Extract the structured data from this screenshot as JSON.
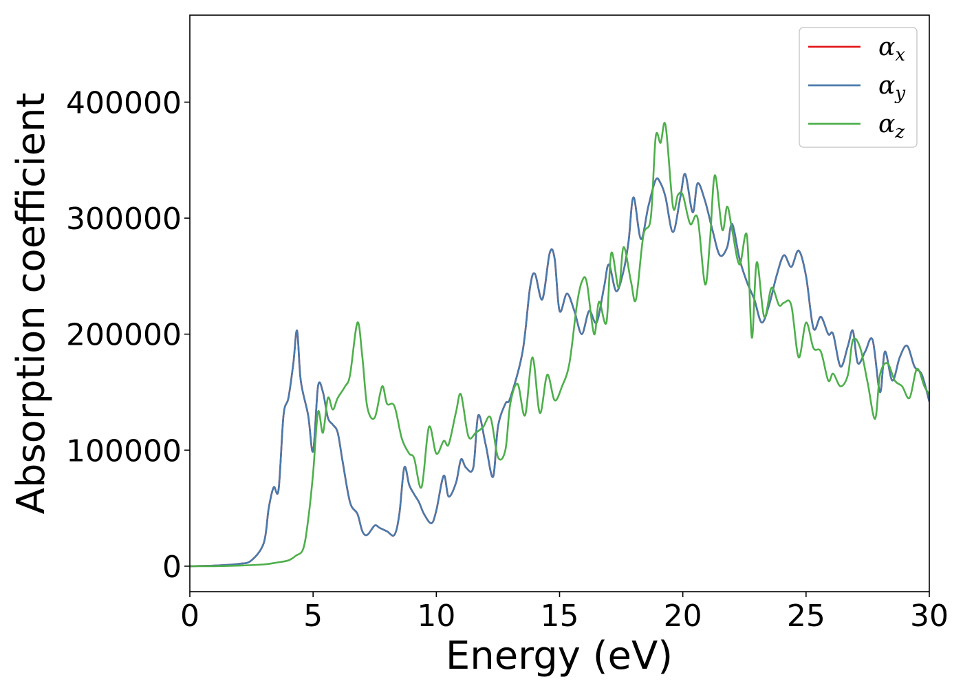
{
  "chart_data": {
    "type": "line",
    "title": "",
    "xlabel": "Energy (eV)",
    "ylabel": "Absorption coefficient",
    "xlim": [
      0,
      30
    ],
    "ylim": [
      -22000,
      475000
    ],
    "xticks": [
      0,
      5,
      10,
      15,
      20,
      25,
      30
    ],
    "yticks": [
      0,
      100000,
      200000,
      300000,
      400000
    ],
    "grid": false,
    "legend_position": "top-right",
    "series": [
      {
        "name": "α_x",
        "symbol": "α",
        "sub": "x",
        "color": "#e41a1c",
        "x": [
          0,
          1,
          2,
          2.5,
          3,
          3.2,
          3.4,
          3.6,
          3.8,
          4.0,
          4.2,
          4.35,
          4.5,
          4.8,
          5.0,
          5.2,
          5.4,
          5.6,
          5.8,
          6.0,
          6.2,
          6.5,
          6.8,
          7.0,
          7.2,
          7.5,
          7.7,
          8.0,
          8.3,
          8.5,
          8.7,
          8.9,
          9.1,
          9.3,
          9.5,
          9.8,
          10.0,
          10.3,
          10.5,
          10.8,
          11.0,
          11.2,
          11.5,
          11.7,
          12.0,
          12.3,
          12.5,
          12.8,
          13.0,
          13.5,
          13.8,
          14.0,
          14.3,
          14.6,
          14.8,
          15.0,
          15.3,
          15.6,
          15.9,
          16.2,
          16.5,
          16.8,
          17.0,
          17.3,
          17.6,
          17.8,
          18.0,
          18.3,
          18.6,
          18.9,
          19.1,
          19.3,
          19.6,
          19.9,
          20.1,
          20.4,
          20.6,
          20.9,
          21.2,
          21.5,
          21.8,
          22.0,
          22.3,
          22.6,
          22.9,
          23.2,
          23.5,
          23.8,
          24.1,
          24.4,
          24.7,
          25.0,
          25.3,
          25.6,
          25.9,
          26.1,
          26.4,
          26.7,
          26.9,
          27.1,
          27.4,
          27.7,
          28.0,
          28.2,
          28.5,
          28.8,
          29.1,
          29.4,
          29.7,
          30.0
        ],
        "values": [
          0,
          500,
          2000,
          5000,
          20000,
          50000,
          68000,
          66000,
          130000,
          145000,
          175000,
          203000,
          160000,
          130000,
          99000,
          155000,
          150000,
          128000,
          122000,
          115000,
          90000,
          55000,
          45000,
          30000,
          27000,
          35000,
          33000,
          30000,
          27000,
          45000,
          85000,
          70000,
          62000,
          55000,
          45000,
          37000,
          48000,
          78000,
          60000,
          72000,
          92000,
          85000,
          85000,
          130000,
          105000,
          77000,
          120000,
          140000,
          145000,
          185000,
          240000,
          252000,
          230000,
          270000,
          265000,
          220000,
          235000,
          220000,
          200000,
          220000,
          210000,
          240000,
          260000,
          237000,
          255000,
          280000,
          318000,
          282000,
          310000,
          333000,
          330000,
          318000,
          288000,
          318000,
          338000,
          305000,
          330000,
          315000,
          290000,
          268000,
          275000,
          295000,
          265000,
          245000,
          230000,
          210000,
          225000,
          250000,
          268000,
          258000,
          272000,
          250000,
          205000,
          215000,
          200000,
          200000,
          172000,
          190000,
          203000,
          175000,
          185000,
          195000,
          150000,
          185000,
          160000,
          180000,
          190000,
          172000,
          165000,
          142000
        ]
      },
      {
        "name": "α_y",
        "symbol": "α",
        "sub": "y",
        "color": "#4a7aab",
        "x": [
          0,
          1,
          2,
          2.5,
          3,
          3.2,
          3.4,
          3.6,
          3.8,
          4.0,
          4.2,
          4.35,
          4.5,
          4.8,
          5.0,
          5.2,
          5.4,
          5.6,
          5.8,
          6.0,
          6.2,
          6.5,
          6.8,
          7.0,
          7.2,
          7.5,
          7.7,
          8.0,
          8.3,
          8.5,
          8.7,
          8.9,
          9.1,
          9.3,
          9.5,
          9.8,
          10.0,
          10.3,
          10.5,
          10.8,
          11.0,
          11.2,
          11.5,
          11.7,
          12.0,
          12.3,
          12.5,
          12.8,
          13.0,
          13.5,
          13.8,
          14.0,
          14.3,
          14.6,
          14.8,
          15.0,
          15.3,
          15.6,
          15.9,
          16.2,
          16.5,
          16.8,
          17.0,
          17.3,
          17.6,
          17.8,
          18.0,
          18.3,
          18.6,
          18.9,
          19.1,
          19.3,
          19.6,
          19.9,
          20.1,
          20.4,
          20.6,
          20.9,
          21.2,
          21.5,
          21.8,
          22.0,
          22.3,
          22.6,
          22.9,
          23.2,
          23.5,
          23.8,
          24.1,
          24.4,
          24.7,
          25.0,
          25.3,
          25.6,
          25.9,
          26.1,
          26.4,
          26.7,
          26.9,
          27.1,
          27.4,
          27.7,
          28.0,
          28.2,
          28.5,
          28.8,
          29.1,
          29.4,
          29.7,
          30.0
        ],
        "values": [
          0,
          500,
          2000,
          5000,
          20000,
          50000,
          68000,
          66000,
          130000,
          145000,
          175000,
          203000,
          160000,
          130000,
          99000,
          155000,
          150000,
          128000,
          122000,
          115000,
          90000,
          55000,
          45000,
          30000,
          27000,
          35000,
          33000,
          30000,
          27000,
          45000,
          85000,
          70000,
          62000,
          55000,
          45000,
          37000,
          48000,
          78000,
          60000,
          72000,
          92000,
          85000,
          85000,
          130000,
          105000,
          77000,
          120000,
          140000,
          145000,
          185000,
          240000,
          252000,
          230000,
          270000,
          265000,
          220000,
          235000,
          220000,
          200000,
          220000,
          210000,
          240000,
          260000,
          237000,
          255000,
          280000,
          318000,
          282000,
          310000,
          333000,
          330000,
          318000,
          288000,
          318000,
          338000,
          305000,
          330000,
          315000,
          290000,
          268000,
          275000,
          295000,
          265000,
          245000,
          230000,
          210000,
          225000,
          250000,
          268000,
          258000,
          272000,
          250000,
          205000,
          215000,
          200000,
          200000,
          172000,
          190000,
          203000,
          175000,
          185000,
          195000,
          150000,
          185000,
          160000,
          180000,
          190000,
          172000,
          165000,
          142000
        ]
      },
      {
        "name": "α_z",
        "symbol": "α",
        "sub": "z",
        "color": "#4daf4a",
        "x": [
          0,
          1,
          2,
          3,
          3.5,
          4.0,
          4.3,
          4.6,
          4.8,
          5.0,
          5.2,
          5.4,
          5.6,
          5.8,
          6.0,
          6.3,
          6.5,
          6.8,
          7.0,
          7.2,
          7.5,
          7.8,
          8.0,
          8.3,
          8.6,
          8.9,
          9.1,
          9.4,
          9.7,
          10.0,
          10.3,
          10.5,
          10.8,
          11.0,
          11.3,
          11.6,
          11.9,
          12.2,
          12.5,
          12.8,
          13.0,
          13.3,
          13.6,
          13.9,
          14.2,
          14.5,
          14.8,
          15.1,
          15.4,
          15.7,
          15.9,
          16.1,
          16.4,
          16.6,
          16.9,
          17.1,
          17.4,
          17.6,
          17.9,
          18.1,
          18.4,
          18.7,
          18.9,
          19.1,
          19.3,
          19.6,
          19.8,
          20.0,
          20.3,
          20.6,
          20.9,
          21.1,
          21.3,
          21.6,
          21.8,
          22.0,
          22.3,
          22.6,
          22.8,
          23.0,
          23.3,
          23.6,
          23.9,
          24.1,
          24.4,
          24.7,
          25.0,
          25.3,
          25.6,
          25.9,
          26.1,
          26.4,
          26.7,
          26.9,
          27.2,
          27.5,
          27.8,
          28.0,
          28.3,
          28.6,
          28.9,
          29.2,
          29.5,
          29.8,
          30.0
        ],
        "values": [
          0,
          0,
          500,
          1500,
          3000,
          5000,
          9000,
          15000,
          40000,
          80000,
          133000,
          115000,
          145000,
          135000,
          145000,
          155000,
          165000,
          210000,
          180000,
          137000,
          128000,
          155000,
          140000,
          138000,
          110000,
          97000,
          93000,
          68000,
          120000,
          97000,
          108000,
          105000,
          133000,
          148000,
          112000,
          115000,
          120000,
          128000,
          94000,
          100000,
          140000,
          157000,
          130000,
          180000,
          132000,
          165000,
          143000,
          155000,
          175000,
          225000,
          245000,
          245000,
          200000,
          228000,
          210000,
          270000,
          240000,
          275000,
          245000,
          230000,
          285000,
          300000,
          370000,
          365000,
          380000,
          310000,
          320000,
          320000,
          295000,
          300000,
          243000,
          280000,
          337000,
          290000,
          310000,
          290000,
          260000,
          285000,
          197000,
          262000,
          215000,
          240000,
          225000,
          227000,
          225000,
          180000,
          210000,
          188000,
          185000,
          160000,
          166000,
          155000,
          165000,
          195000,
          188000,
          158000,
          127000,
          165000,
          175000,
          160000,
          155000,
          145000,
          170000,
          155000,
          148000
        ]
      }
    ]
  }
}
